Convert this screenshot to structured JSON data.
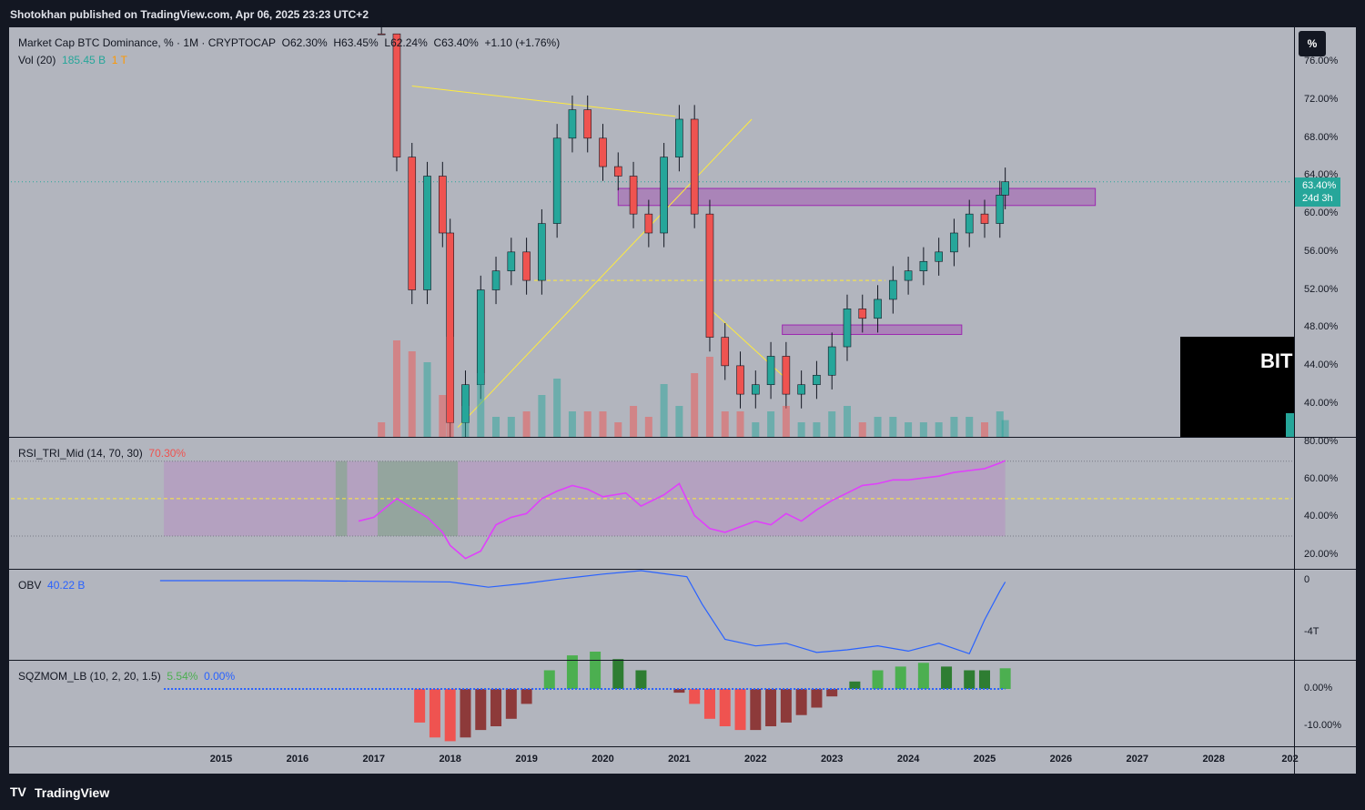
{
  "header": {
    "publisher": "Shotokhan published on TradingView.com, Apr 06, 2025 23:23 UTC+2"
  },
  "footer": {
    "brand": "TradingView",
    "logo": "TV"
  },
  "main_pane": {
    "symbol": "Market Cap BTC Dominance, % · 1M · CRYPTOCAP",
    "open": "O62.30%",
    "high": "H63.45%",
    "low": "L62.24%",
    "close": "C63.40%",
    "change": "+1.10 (+1.76%)",
    "vol_label": "Vol (20)",
    "vol_value": "185.45 B",
    "vol_extra": "1 T",
    "scale_button": "%",
    "price_tag": "63.40%",
    "price_tag_time": "24d 3h",
    "overlay_text": "BIT"
  },
  "rsi_pane": {
    "label": "RSI_TRI_Mid (14, 70, 30)",
    "value": "70.30%"
  },
  "obv_pane": {
    "label": "OBV",
    "value": "40.22 B"
  },
  "sqz_pane": {
    "label": "SQZMOM_LB (10, 2, 20, 1.5)",
    "value1": "5.54%",
    "value2": "0.00%"
  },
  "colors": {
    "up": "#26a69a",
    "down": "#ef5350",
    "rsi": "#e040fb",
    "obv": "#2962ff",
    "trend": "#ffeb3b",
    "zone": "#9c27b0"
  },
  "chart_data": [
    {
      "type": "line",
      "name": "BTC Dominance",
      "x_label": "year",
      "y_unit": "%",
      "x_ticks": [
        "2015",
        "2016",
        "2017",
        "2018",
        "2019",
        "2020",
        "2021",
        "2022",
        "2023",
        "2024",
        "2025",
        "2026",
        "2027",
        "2028",
        "202"
      ],
      "y_ticks": [
        "76.00%",
        "72.00%",
        "68.00%",
        "64.00%",
        "60.00%",
        "56.00%",
        "52.00%",
        "48.00%",
        "44.00%",
        "40.00%"
      ],
      "ylim": [
        36.5,
        79.5
      ],
      "x": [
        2017.1,
        2017.3,
        2017.5,
        2017.7,
        2017.9,
        2018.0,
        2018.2,
        2018.4,
        2018.6,
        2018.8,
        2019.0,
        2019.2,
        2019.4,
        2019.6,
        2019.8,
        2020.0,
        2020.2,
        2020.4,
        2020.6,
        2020.8,
        2021.0,
        2021.2,
        2021.4,
        2021.6,
        2021.8,
        2022.0,
        2022.2,
        2022.4,
        2022.6,
        2022.8,
        2023.0,
        2023.2,
        2023.4,
        2023.6,
        2023.8,
        2024.0,
        2024.2,
        2024.4,
        2024.6,
        2024.8,
        2025.0,
        2025.2,
        2025.27
      ],
      "values": [
        82,
        66,
        52,
        64,
        58,
        38,
        42,
        52,
        54,
        56,
        53,
        59,
        68,
        71,
        68,
        65,
        64,
        60,
        58,
        66,
        70,
        60,
        47,
        44,
        41,
        42,
        45,
        41,
        42,
        43,
        46,
        50,
        49,
        51,
        53,
        54,
        55,
        56,
        58,
        60,
        59,
        62,
        63.4
      ]
    },
    {
      "type": "line",
      "name": "RSI",
      "ylim": [
        13,
        82
      ],
      "y_ticks": [
        "80.00%",
        "60.00%",
        "40.00%",
        "20.00%"
      ],
      "x": [
        2016.8,
        2017.0,
        2017.3,
        2017.5,
        2017.7,
        2017.9,
        2018.0,
        2018.2,
        2018.4,
        2018.6,
        2018.8,
        2019.0,
        2019.2,
        2019.4,
        2019.6,
        2019.8,
        2020.0,
        2020.3,
        2020.5,
        2020.8,
        2021.0,
        2021.2,
        2021.4,
        2021.6,
        2021.8,
        2022.0,
        2022.2,
        2022.4,
        2022.6,
        2022.8,
        2023.0,
        2023.2,
        2023.4,
        2023.6,
        2023.8,
        2024.0,
        2024.2,
        2024.4,
        2024.6,
        2024.8,
        2025.0,
        2025.2,
        2025.27
      ],
      "values": [
        38,
        40,
        50,
        45,
        40,
        32,
        25,
        18,
        22,
        36,
        40,
        42,
        50,
        54,
        57,
        55,
        51,
        53,
        46,
        52,
        58,
        41,
        34,
        32,
        35,
        38,
        36,
        42,
        38,
        44,
        49,
        53,
        57,
        58,
        60,
        60,
        61,
        62,
        64,
        65,
        66,
        69,
        70.3
      ]
    },
    {
      "type": "line",
      "name": "OBV",
      "y_ticks": [
        "0",
        "-4T"
      ],
      "x": [
        2014.2,
        2016,
        2018,
        2018.5,
        2019,
        2019.4,
        2020,
        2020.5,
        2021.1,
        2021.3,
        2021.6,
        2022,
        2022.4,
        2022.8,
        2023.2,
        2023.6,
        2024,
        2024.4,
        2024.8,
        2025,
        2025.2,
        2025.27
      ],
      "values": [
        0,
        0,
        -0.1,
        -0.5,
        -0.2,
        0.1,
        0.5,
        0.8,
        0.3,
        -1.8,
        -4.5,
        -5,
        -4.8,
        -5.5,
        -5.3,
        -5,
        -5.4,
        -4.8,
        -5.6,
        -3,
        -0.8,
        -0.1
      ]
    },
    {
      "type": "bar",
      "name": "Squeeze Momentum",
      "y_ticks": [
        "0.00%",
        "-10.00%"
      ],
      "x": [
        2017.6,
        2017.8,
        2018.0,
        2018.2,
        2018.4,
        2018.6,
        2018.8,
        2019.0,
        2019.3,
        2019.6,
        2019.9,
        2020.2,
        2020.5,
        2021.0,
        2021.2,
        2021.4,
        2021.6,
        2021.8,
        2022.0,
        2022.2,
        2022.4,
        2022.6,
        2022.8,
        2023.0,
        2023.3,
        2023.6,
        2023.9,
        2024.2,
        2024.5,
        2024.8,
        2025.0,
        2025.27
      ],
      "values": [
        -9,
        -13,
        -14,
        -13,
        -11,
        -10,
        -8,
        -4,
        5,
        9,
        10,
        8,
        5,
        -1,
        -4,
        -8,
        -10,
        -11,
        -11,
        -10,
        -9,
        -7,
        -5,
        -2,
        2,
        5,
        6,
        7,
        6,
        5,
        5,
        5.54
      ]
    }
  ]
}
